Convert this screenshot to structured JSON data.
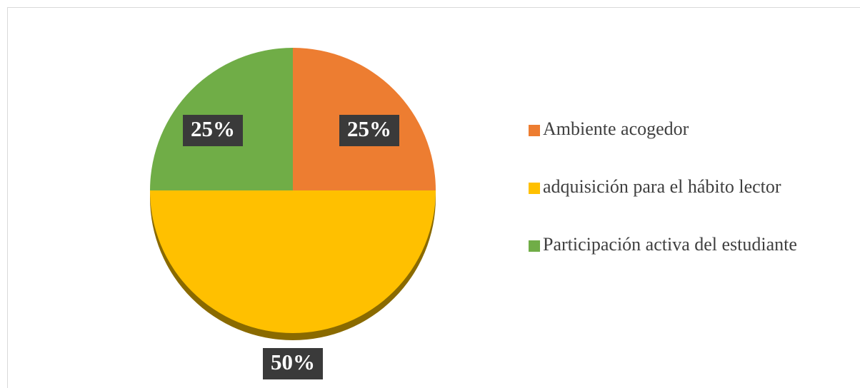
{
  "chart_data": {
    "type": "pie",
    "categories": [
      "Ambiente acogedor",
      "adquisición para el hábito lector",
      "Participación activa del estudiante"
    ],
    "values": [
      25,
      50,
      25
    ],
    "value_labels": [
      "25%",
      "50%",
      "25%"
    ],
    "colors": [
      "#ED7D31",
      "#FFC000",
      "#70AD47"
    ],
    "legend": "right"
  }
}
